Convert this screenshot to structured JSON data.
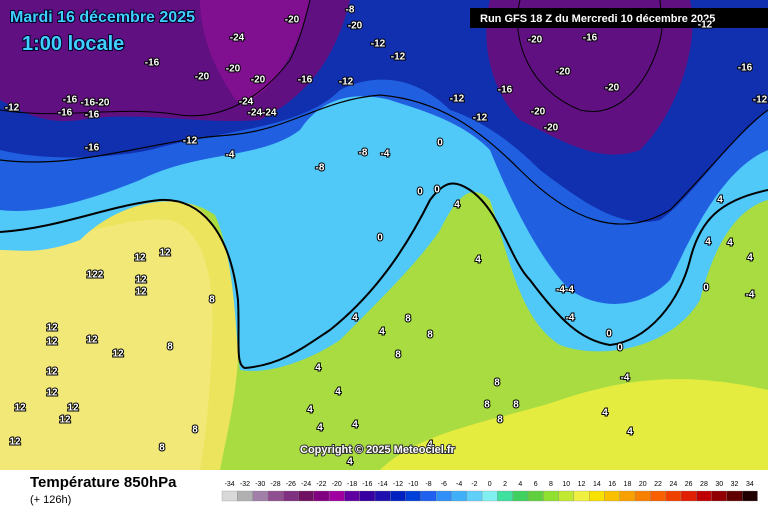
{
  "header": {
    "date": "Mardi 16 décembre 2025",
    "time": "1:00 locale",
    "run": "Run GFS 18 Z du Mercredi 10 décembre 2025"
  },
  "copyright": "Copyright © 2025 Meteociel.fr",
  "footer": {
    "title": "Température 850hPa",
    "lead": "(+ 126h)"
  },
  "scale": {
    "values": [
      -34,
      -32,
      -30,
      -28,
      -26,
      -24,
      -22,
      -20,
      -18,
      -16,
      -14,
      -12,
      -10,
      -8,
      -6,
      -4,
      -2,
      0,
      2,
      4,
      6,
      8,
      10,
      12,
      14,
      16,
      18,
      20,
      22,
      24,
      26,
      28,
      30,
      32,
      34
    ],
    "colors": [
      "#d8d8d8",
      "#b0b0b0",
      "#a080a8",
      "#905090",
      "#803080",
      "#701060",
      "#800080",
      "#a000a0",
      "#6000a0",
      "#3800a0",
      "#2010b0",
      "#0020c0",
      "#0040d8",
      "#2060f0",
      "#3090f8",
      "#40b0f8",
      "#60d0f8",
      "#80f0f0",
      "#40e0a0",
      "#40d060",
      "#60d040",
      "#90e030",
      "#c0e830",
      "#f0f040",
      "#f8e000",
      "#f8c000",
      "#f8a000",
      "#f88000",
      "#f86000",
      "#f04000",
      "#e02000",
      "#c00000",
      "#900000",
      "#600000",
      "#200000"
    ]
  },
  "map_labels": [
    "-12",
    "-16",
    "-16",
    "-16-20",
    "-16",
    "-16",
    "-16",
    "-20",
    "-20",
    "-24",
    "-20",
    "-24",
    "-24-24",
    "-16",
    "-12",
    "-4",
    "-12",
    "-12",
    "-12",
    "-16",
    "-20",
    "-20",
    "-16",
    "-20",
    "-20",
    "-20",
    "-12",
    "-16",
    "-12",
    "-8",
    "-20",
    "-20",
    "-12",
    "-12",
    "-8",
    "-8",
    "-4",
    "0",
    "0",
    "0",
    "0",
    "4",
    "4",
    "4",
    "4",
    "4",
    "4",
    "0",
    "-4",
    "-4-4",
    "-4",
    "0",
    "0",
    "-4",
    "4",
    "4",
    "12",
    "122",
    "12",
    "12",
    "12",
    "8",
    "12",
    "12",
    "12",
    "12",
    "12",
    "8",
    "12",
    "12",
    "12",
    "12",
    "12",
    "8",
    "8",
    "4",
    "4",
    "8",
    "8",
    "4",
    "4",
    "8",
    "4",
    "4",
    "4",
    "8",
    "8",
    "8",
    "8",
    "4",
    "4"
  ]
}
